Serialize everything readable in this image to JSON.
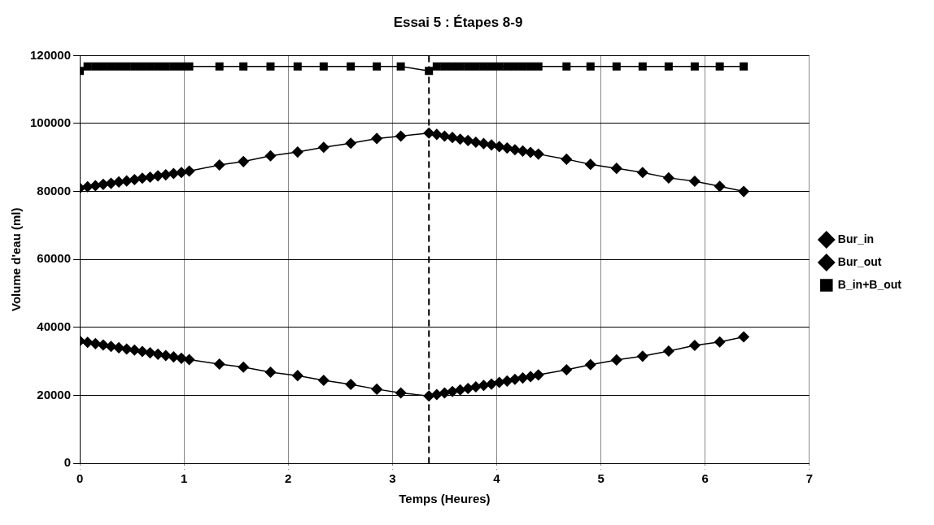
{
  "chart_data": {
    "type": "line",
    "title": "Essai 5 : Étapes 8-9",
    "xlabel": "Temps (Heures)",
    "ylabel": "Volume d'eau (ml)",
    "x": [
      0,
      0.075,
      0.15,
      0.225,
      0.3,
      0.375,
      0.45,
      0.525,
      0.6,
      0.675,
      0.75,
      0.825,
      0.9,
      0.975,
      1.05,
      1.34,
      1.57,
      1.83,
      2.09,
      2.34,
      2.6,
      2.85,
      3.08,
      3.35,
      3.425,
      3.5,
      3.575,
      3.65,
      3.725,
      3.8,
      3.875,
      3.95,
      4.025,
      4.1,
      4.175,
      4.25,
      4.325,
      4.4,
      4.67,
      4.9,
      5.15,
      5.4,
      5.65,
      5.9,
      6.14,
      6.37
    ],
    "series": [
      {
        "name": "Bur_in",
        "color": "#000000",
        "marker": "diamond",
        "values": [
          36000,
          35600,
          35200,
          34800,
          34400,
          34000,
          33600,
          33300,
          32900,
          32500,
          32100,
          31700,
          31300,
          30900,
          30500,
          29200,
          28300,
          26800,
          25800,
          24400,
          23200,
          21800,
          20700,
          19800,
          20200,
          20700,
          21100,
          21600,
          22000,
          22500,
          22900,
          23300,
          23800,
          24200,
          24700,
          25100,
          25500,
          26000,
          27500,
          29000,
          30400,
          31500,
          33000,
          34700,
          35700,
          37200
        ]
      },
      {
        "name": "Bur_out",
        "color": "#000000",
        "marker": "diamond",
        "values": [
          81000,
          81400,
          81700,
          82100,
          82400,
          82800,
          83100,
          83500,
          83900,
          84200,
          84600,
          84900,
          85300,
          85600,
          86000,
          87800,
          88800,
          90500,
          91600,
          93000,
          94200,
          95600,
          96300,
          97200,
          96800,
          96300,
          95900,
          95400,
          95000,
          94500,
          94100,
          93700,
          93200,
          92800,
          92300,
          91900,
          91500,
          91000,
          89500,
          88000,
          86800,
          85600,
          84000,
          83000,
          81500,
          80000
        ]
      },
      {
        "name": "B_in+B_out",
        "color": "#000000",
        "marker": "square",
        "values": [
          115500,
          116800,
          116800,
          116800,
          116800,
          116800,
          116800,
          116800,
          116800,
          116800,
          116800,
          116800,
          116800,
          116800,
          116800,
          116800,
          116800,
          116800,
          116800,
          116800,
          116800,
          116800,
          116800,
          115500,
          116800,
          116800,
          116800,
          116800,
          116800,
          116800,
          116800,
          116800,
          116800,
          116800,
          116800,
          116800,
          116800,
          116800,
          116800,
          116800,
          116800,
          116800,
          116800,
          116800,
          116800,
          116800
        ]
      }
    ],
    "xlim": [
      0,
      7
    ],
    "xticks": [
      0,
      1,
      2,
      3,
      4,
      5,
      6,
      7
    ],
    "ylim": [
      0,
      120000
    ],
    "yticks": [
      0,
      20000,
      40000,
      60000,
      80000,
      100000,
      120000
    ],
    "ref_lines": [
      {
        "axis": "x",
        "value": 3.35,
        "color": "#000000",
        "line_style": "dashed"
      }
    ],
    "grid": true,
    "legend": "right",
    "line_style": "solid"
  }
}
